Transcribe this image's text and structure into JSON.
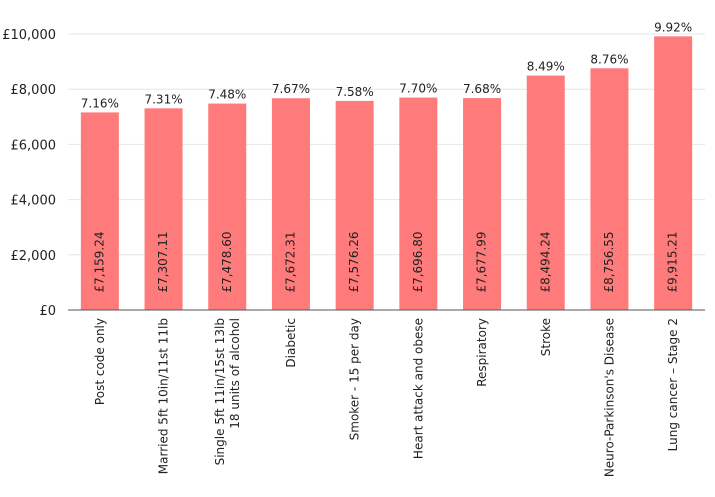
{
  "chart_data": {
    "type": "bar",
    "categories": [
      "Post code only",
      "Married 5ft 10in/11st 11lb",
      "Single 5ft 11in/15st 13lb\n18 units of alcohol",
      "Diabetic",
      "Smoker - 15 per day",
      "Heart attack and obese",
      "Respiratory",
      "Stroke",
      "Neuro-Parkinson's Disease",
      "Lung cancer – Stage 2"
    ],
    "values": [
      7159.24,
      7307.11,
      7478.6,
      7672.31,
      7576.26,
      7696.8,
      7677.99,
      8494.24,
      8756.55,
      9915.21
    ],
    "value_labels": [
      "£7,159.24",
      "£7,307.11",
      "£7,478.60",
      "£7,672.31",
      "£7,576.26",
      "£7,696.80",
      "£7,677.99",
      "£8,494.24",
      "£8,756.55",
      "£9,915.21"
    ],
    "percent_labels": [
      "7.16%",
      "7.31%",
      "7.48%",
      "7.67%",
      "7.58%",
      "7.70%",
      "7.68%",
      "8.49%",
      "8.76%",
      "9.92%"
    ],
    "yticks": [
      "£0",
      "£2,000",
      "£4,000",
      "£6,000",
      "£8,000",
      "£10,000"
    ],
    "ytick_values": [
      0,
      2000,
      4000,
      6000,
      8000,
      10000
    ],
    "ylim": [
      0,
      10000
    ],
    "grid": true,
    "bar_color": "#ff7a7a",
    "grid_color": "#e6e6e6",
    "axis_color": "#555555"
  }
}
